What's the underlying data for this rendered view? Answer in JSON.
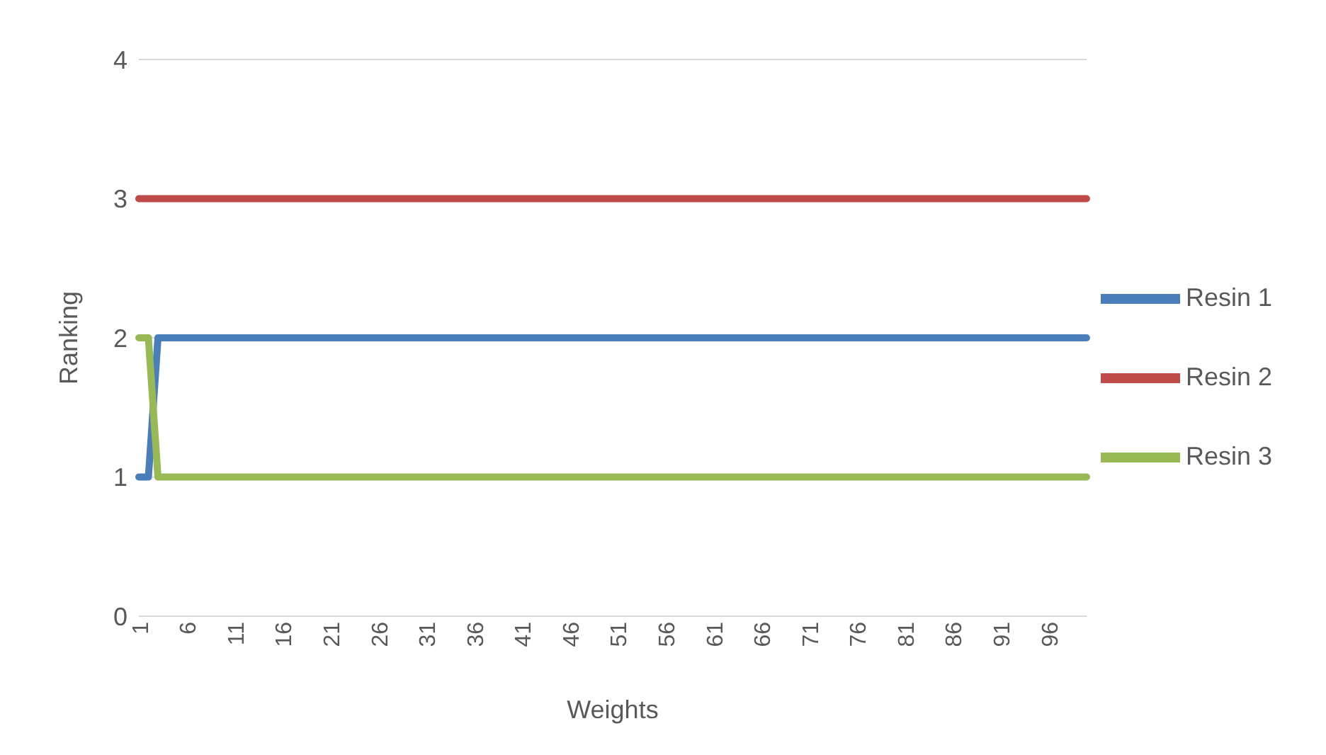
{
  "chart_data": {
    "type": "line",
    "xlabel": "Weights",
    "ylabel": "Ranking",
    "categories": [
      "1",
      null,
      null,
      null,
      null,
      "6",
      null,
      null,
      null,
      null,
      "11",
      null,
      null,
      null,
      null,
      "16",
      null,
      null,
      null,
      null,
      "21",
      null,
      null,
      null,
      null,
      "26",
      null,
      null,
      null,
      null,
      "31",
      null,
      null,
      null,
      null,
      "36",
      null,
      null,
      null,
      null,
      "41",
      null,
      null,
      null,
      null,
      "46",
      null,
      null,
      null,
      null,
      "51",
      null,
      null,
      null,
      null,
      "56",
      null,
      null,
      null,
      null,
      "61",
      null,
      null,
      null,
      null,
      "66",
      null,
      null,
      null,
      null,
      "71",
      null,
      null,
      null,
      null,
      "76",
      null,
      null,
      null,
      null,
      "81",
      null,
      null,
      null,
      null,
      "86",
      null,
      null,
      null,
      null,
      "91",
      null,
      null,
      null,
      null,
      "96",
      null,
      null,
      null,
      null
    ],
    "series": [
      {
        "name": "Resin 1",
        "color": "#4a7ebb",
        "values": [
          1,
          1,
          2,
          2,
          2,
          2,
          2,
          2,
          2,
          2,
          2,
          2,
          2,
          2,
          2,
          2,
          2,
          2,
          2,
          2,
          2,
          2,
          2,
          2,
          2,
          2,
          2,
          2,
          2,
          2,
          2,
          2,
          2,
          2,
          2,
          2,
          2,
          2,
          2,
          2,
          2,
          2,
          2,
          2,
          2,
          2,
          2,
          2,
          2,
          2,
          2,
          2,
          2,
          2,
          2,
          2,
          2,
          2,
          2,
          2,
          2,
          2,
          2,
          2,
          2,
          2,
          2,
          2,
          2,
          2,
          2,
          2,
          2,
          2,
          2,
          2,
          2,
          2,
          2,
          2,
          2,
          2,
          2,
          2,
          2,
          2,
          2,
          2,
          2,
          2,
          2,
          2,
          2,
          2,
          2,
          2,
          2,
          2,
          2,
          2
        ]
      },
      {
        "name": "Resin 2",
        "color": "#be4b48",
        "values": [
          3,
          3,
          3,
          3,
          3,
          3,
          3,
          3,
          3,
          3,
          3,
          3,
          3,
          3,
          3,
          3,
          3,
          3,
          3,
          3,
          3,
          3,
          3,
          3,
          3,
          3,
          3,
          3,
          3,
          3,
          3,
          3,
          3,
          3,
          3,
          3,
          3,
          3,
          3,
          3,
          3,
          3,
          3,
          3,
          3,
          3,
          3,
          3,
          3,
          3,
          3,
          3,
          3,
          3,
          3,
          3,
          3,
          3,
          3,
          3,
          3,
          3,
          3,
          3,
          3,
          3,
          3,
          3,
          3,
          3,
          3,
          3,
          3,
          3,
          3,
          3,
          3,
          3,
          3,
          3,
          3,
          3,
          3,
          3,
          3,
          3,
          3,
          3,
          3,
          3,
          3,
          3,
          3,
          3,
          3,
          3,
          3,
          3,
          3,
          3
        ]
      },
      {
        "name": "Resin 3",
        "color": "#98b954",
        "values": [
          2,
          2,
          1,
          1,
          1,
          1,
          1,
          1,
          1,
          1,
          1,
          1,
          1,
          1,
          1,
          1,
          1,
          1,
          1,
          1,
          1,
          1,
          1,
          1,
          1,
          1,
          1,
          1,
          1,
          1,
          1,
          1,
          1,
          1,
          1,
          1,
          1,
          1,
          1,
          1,
          1,
          1,
          1,
          1,
          1,
          1,
          1,
          1,
          1,
          1,
          1,
          1,
          1,
          1,
          1,
          1,
          1,
          1,
          1,
          1,
          1,
          1,
          1,
          1,
          1,
          1,
          1,
          1,
          1,
          1,
          1,
          1,
          1,
          1,
          1,
          1,
          1,
          1,
          1,
          1,
          1,
          1,
          1,
          1,
          1,
          1,
          1,
          1,
          1,
          1,
          1,
          1,
          1,
          1,
          1,
          1,
          1,
          1,
          1,
          1
        ]
      }
    ],
    "ylim": [
      0,
      4
    ],
    "yticks": [
      0,
      1,
      2,
      3,
      4
    ],
    "grid": "y",
    "legend": "right",
    "marker": "none",
    "line_style": "solid"
  }
}
